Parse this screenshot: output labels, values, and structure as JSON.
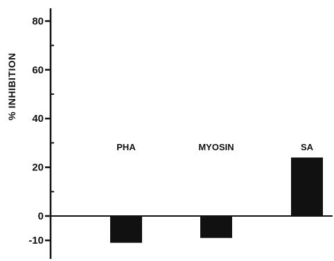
{
  "chart_data": {
    "type": "bar",
    "title": "",
    "xlabel": "",
    "ylabel": "% INHIBITION",
    "categories": [
      "PHA",
      "MYOSIN",
      "SA"
    ],
    "values": [
      -11,
      -9,
      24
    ],
    "ylim": [
      -18,
      85
    ],
    "yticks_labeled": [
      80,
      60,
      40,
      20,
      0,
      -10
    ],
    "yticks_minor": [
      70,
      50,
      30,
      10
    ],
    "tick_labels": [
      "80",
      "60",
      "40",
      "20",
      "0",
      "-10"
    ],
    "grid": false,
    "legend": "none",
    "bar_color": "#111111"
  }
}
